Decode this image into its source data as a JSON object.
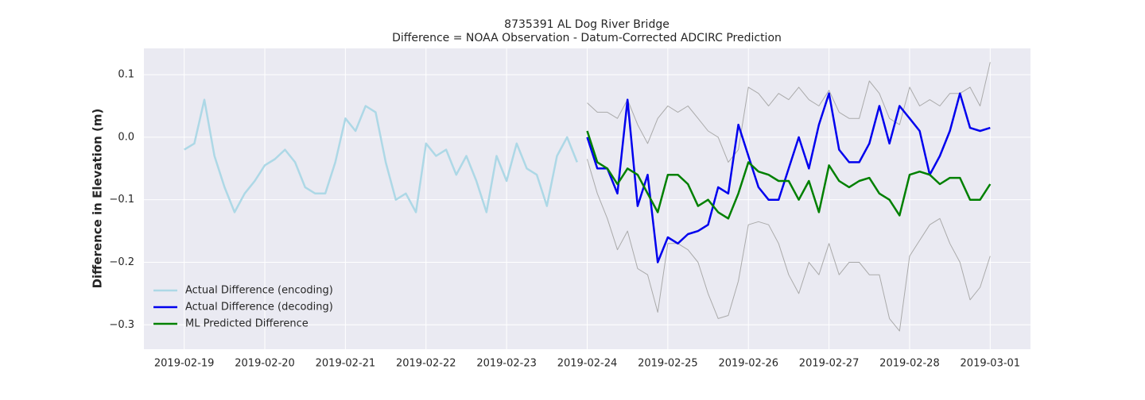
{
  "chart_data": {
    "type": "line",
    "title": "8735391 AL Dog River Bridge",
    "subtitle": "Difference = NOAA Observation - Datum-Corrected ADCIRC Prediction",
    "y_label": "Difference in Elevation (m)",
    "xlim": [
      "2019-02-18 12:00",
      "2019-03-01 12:00"
    ],
    "xticks": [
      "2019-02-19",
      "2019-02-20",
      "2019-02-21",
      "2019-02-22",
      "2019-02-23",
      "2019-02-24",
      "2019-02-25",
      "2019-02-26",
      "2019-02-27",
      "2019-02-28",
      "2019-03-01"
    ],
    "ylim": [
      -0.339,
      0.142
    ],
    "yticks": [
      {
        "value": -0.3,
        "label": "−0.3"
      },
      {
        "value": -0.2,
        "label": "−0.2"
      },
      {
        "value": -0.1,
        "label": "−0.1"
      },
      {
        "value": 0,
        "label": "0.0"
      },
      {
        "value": 0.1,
        "label": "0.1"
      }
    ],
    "grid": true,
    "legend_loc": "lower left",
    "series": [
      {
        "color": "#aaaaaa",
        "x": [
          "2019-02-24 00:00",
          "2019-02-24 03:00",
          "2019-02-24 06:00",
          "2019-02-24 09:00",
          "2019-02-24 12:00",
          "2019-02-24 15:00",
          "2019-02-24 18:00",
          "2019-02-24 21:00",
          "2019-02-25 00:00",
          "2019-02-25 03:00",
          "2019-02-25 06:00",
          "2019-02-25 09:00",
          "2019-02-25 12:00",
          "2019-02-25 15:00",
          "2019-02-25 18:00",
          "2019-02-25 21:00",
          "2019-02-26 00:00",
          "2019-02-26 03:00",
          "2019-02-26 06:00",
          "2019-02-26 09:00",
          "2019-02-26 12:00",
          "2019-02-26 15:00",
          "2019-02-26 18:00",
          "2019-02-26 21:00",
          "2019-02-27 00:00",
          "2019-02-27 03:00",
          "2019-02-27 06:00",
          "2019-02-27 09:00",
          "2019-02-27 12:00",
          "2019-02-27 15:00",
          "2019-02-27 18:00",
          "2019-02-27 21:00",
          "2019-02-28 00:00",
          "2019-02-28 03:00",
          "2019-02-28 06:00",
          "2019-02-28 09:00",
          "2019-02-28 12:00",
          "2019-02-28 15:00",
          "2019-02-28 18:00",
          "2019-02-28 21:00",
          "2019-03-01 00:00"
        ],
        "values": [
          0.055,
          0.04,
          0.04,
          0.03,
          0.06,
          0.02,
          -0.01,
          0.03,
          0.05,
          0.04,
          0.05,
          0.03,
          0.01,
          0.0,
          -0.04,
          -0.02,
          0.08,
          0.07,
          0.05,
          0.07,
          0.06,
          0.08,
          0.06,
          0.05,
          0.075,
          0.04,
          0.03,
          0.03,
          0.09,
          0.07,
          0.03,
          0.02,
          0.08,
          0.05,
          0.06,
          0.05,
          0.07,
          0.07,
          0.08,
          0.05,
          0.12
        ]
      },
      {
        "color": "#aaaaaa",
        "x": [
          "2019-02-24 00:00",
          "2019-02-24 03:00",
          "2019-02-24 06:00",
          "2019-02-24 09:00",
          "2019-02-24 12:00",
          "2019-02-24 15:00",
          "2019-02-24 18:00",
          "2019-02-24 21:00",
          "2019-02-25 00:00",
          "2019-02-25 03:00",
          "2019-02-25 06:00",
          "2019-02-25 09:00",
          "2019-02-25 12:00",
          "2019-02-25 15:00",
          "2019-02-25 18:00",
          "2019-02-25 21:00",
          "2019-02-26 00:00",
          "2019-02-26 03:00",
          "2019-02-26 06:00",
          "2019-02-26 09:00",
          "2019-02-26 12:00",
          "2019-02-26 15:00",
          "2019-02-26 18:00",
          "2019-02-26 21:00",
          "2019-02-27 00:00",
          "2019-02-27 03:00",
          "2019-02-27 06:00",
          "2019-02-27 09:00",
          "2019-02-27 12:00",
          "2019-02-27 15:00",
          "2019-02-27 18:00",
          "2019-02-27 21:00",
          "2019-02-28 00:00",
          "2019-02-28 03:00",
          "2019-02-28 06:00",
          "2019-02-28 09:00",
          "2019-02-28 12:00",
          "2019-02-28 15:00",
          "2019-02-28 18:00",
          "2019-02-28 21:00",
          "2019-03-01 00:00"
        ],
        "values": [
          -0.035,
          -0.09,
          -0.13,
          -0.18,
          -0.15,
          -0.21,
          -0.22,
          -0.28,
          -0.17,
          -0.17,
          -0.18,
          -0.2,
          -0.25,
          -0.29,
          -0.285,
          -0.23,
          -0.14,
          -0.135,
          -0.14,
          -0.17,
          -0.22,
          -0.25,
          -0.2,
          -0.22,
          -0.17,
          -0.22,
          -0.2,
          -0.2,
          -0.22,
          -0.22,
          -0.29,
          -0.31,
          -0.19,
          -0.165,
          -0.14,
          -0.13,
          -0.17,
          -0.2,
          -0.26,
          -0.24,
          -0.19
        ]
      },
      {
        "name": "Actual Difference (encoding)",
        "color": "#add8e6",
        "x": [
          "2019-02-19 00:00",
          "2019-02-19 03:00",
          "2019-02-19 06:00",
          "2019-02-19 09:00",
          "2019-02-19 12:00",
          "2019-02-19 15:00",
          "2019-02-19 18:00",
          "2019-02-19 21:00",
          "2019-02-20 00:00",
          "2019-02-20 03:00",
          "2019-02-20 06:00",
          "2019-02-20 09:00",
          "2019-02-20 12:00",
          "2019-02-20 15:00",
          "2019-02-20 18:00",
          "2019-02-20 21:00",
          "2019-02-21 00:00",
          "2019-02-21 03:00",
          "2019-02-21 06:00",
          "2019-02-21 09:00",
          "2019-02-21 12:00",
          "2019-02-21 15:00",
          "2019-02-21 18:00",
          "2019-02-21 21:00",
          "2019-02-22 00:00",
          "2019-02-22 03:00",
          "2019-02-22 06:00",
          "2019-02-22 09:00",
          "2019-02-22 12:00",
          "2019-02-22 15:00",
          "2019-02-22 18:00",
          "2019-02-22 21:00",
          "2019-02-23 00:00",
          "2019-02-23 03:00",
          "2019-02-23 06:00",
          "2019-02-23 09:00",
          "2019-02-23 12:00",
          "2019-02-23 15:00",
          "2019-02-23 18:00",
          "2019-02-23 21:00"
        ],
        "values": [
          -0.02,
          -0.01,
          0.06,
          -0.03,
          -0.08,
          -0.12,
          -0.09,
          -0.07,
          -0.045,
          -0.035,
          -0.02,
          -0.04,
          -0.08,
          -0.09,
          -0.09,
          -0.04,
          0.03,
          0.01,
          0.05,
          0.04,
          -0.04,
          -0.1,
          -0.09,
          -0.12,
          -0.01,
          -0.03,
          -0.02,
          -0.06,
          -0.03,
          -0.07,
          -0.12,
          -0.03,
          -0.07,
          -0.01,
          -0.05,
          -0.06,
          -0.11,
          -0.03,
          0.0,
          -0.04
        ]
      },
      {
        "name": "Actual Difference (decoding)",
        "color": "#0000ee",
        "x": [
          "2019-02-24 00:00",
          "2019-02-24 03:00",
          "2019-02-24 06:00",
          "2019-02-24 09:00",
          "2019-02-24 12:00",
          "2019-02-24 15:00",
          "2019-02-24 18:00",
          "2019-02-24 21:00",
          "2019-02-25 00:00",
          "2019-02-25 03:00",
          "2019-02-25 06:00",
          "2019-02-25 09:00",
          "2019-02-25 12:00",
          "2019-02-25 15:00",
          "2019-02-25 18:00",
          "2019-02-25 21:00",
          "2019-02-26 00:00",
          "2019-02-26 03:00",
          "2019-02-26 06:00",
          "2019-02-26 09:00",
          "2019-02-26 12:00",
          "2019-02-26 15:00",
          "2019-02-26 18:00",
          "2019-02-26 21:00",
          "2019-02-27 00:00",
          "2019-02-27 03:00",
          "2019-02-27 06:00",
          "2019-02-27 09:00",
          "2019-02-27 12:00",
          "2019-02-27 15:00",
          "2019-02-27 18:00",
          "2019-02-27 21:00",
          "2019-02-28 00:00",
          "2019-02-28 03:00",
          "2019-02-28 06:00",
          "2019-02-28 09:00",
          "2019-02-28 12:00",
          "2019-02-28 15:00",
          "2019-02-28 18:00",
          "2019-02-28 21:00",
          "2019-03-01 00:00"
        ],
        "values": [
          0.0,
          -0.05,
          -0.05,
          -0.09,
          0.06,
          -0.11,
          -0.06,
          -0.2,
          -0.16,
          -0.17,
          -0.155,
          -0.15,
          -0.14,
          -0.08,
          -0.09,
          0.02,
          -0.03,
          -0.08,
          -0.1,
          -0.1,
          -0.05,
          0.0,
          -0.05,
          0.02,
          0.07,
          -0.02,
          -0.04,
          -0.04,
          -0.01,
          0.05,
          -0.01,
          0.05,
          0.03,
          0.01,
          -0.06,
          -0.03,
          0.01,
          0.07,
          0.015,
          0.01,
          0.015
        ]
      },
      {
        "name": "ML Predicted Difference",
        "color": "#008000",
        "x": [
          "2019-02-24 00:00",
          "2019-02-24 03:00",
          "2019-02-24 06:00",
          "2019-02-24 09:00",
          "2019-02-24 12:00",
          "2019-02-24 15:00",
          "2019-02-24 18:00",
          "2019-02-24 21:00",
          "2019-02-25 00:00",
          "2019-02-25 03:00",
          "2019-02-25 06:00",
          "2019-02-25 09:00",
          "2019-02-25 12:00",
          "2019-02-25 15:00",
          "2019-02-25 18:00",
          "2019-02-25 21:00",
          "2019-02-26 00:00",
          "2019-02-26 03:00",
          "2019-02-26 06:00",
          "2019-02-26 09:00",
          "2019-02-26 12:00",
          "2019-02-26 15:00",
          "2019-02-26 18:00",
          "2019-02-26 21:00",
          "2019-02-27 00:00",
          "2019-02-27 03:00",
          "2019-02-27 06:00",
          "2019-02-27 09:00",
          "2019-02-27 12:00",
          "2019-02-27 15:00",
          "2019-02-27 18:00",
          "2019-02-27 21:00",
          "2019-02-28 00:00",
          "2019-02-28 03:00",
          "2019-02-28 06:00",
          "2019-02-28 09:00",
          "2019-02-28 12:00",
          "2019-02-28 15:00",
          "2019-02-28 18:00",
          "2019-02-28 21:00",
          "2019-03-01 00:00"
        ],
        "values": [
          0.01,
          -0.04,
          -0.05,
          -0.075,
          -0.05,
          -0.06,
          -0.09,
          -0.12,
          -0.06,
          -0.06,
          -0.075,
          -0.11,
          -0.1,
          -0.12,
          -0.13,
          -0.09,
          -0.04,
          -0.055,
          -0.06,
          -0.07,
          -0.07,
          -0.1,
          -0.07,
          -0.12,
          -0.045,
          -0.07,
          -0.08,
          -0.07,
          -0.065,
          -0.09,
          -0.1,
          -0.125,
          -0.06,
          -0.055,
          -0.06,
          -0.075,
          -0.065,
          -0.065,
          -0.1,
          -0.1,
          -0.075
        ]
      }
    ]
  }
}
